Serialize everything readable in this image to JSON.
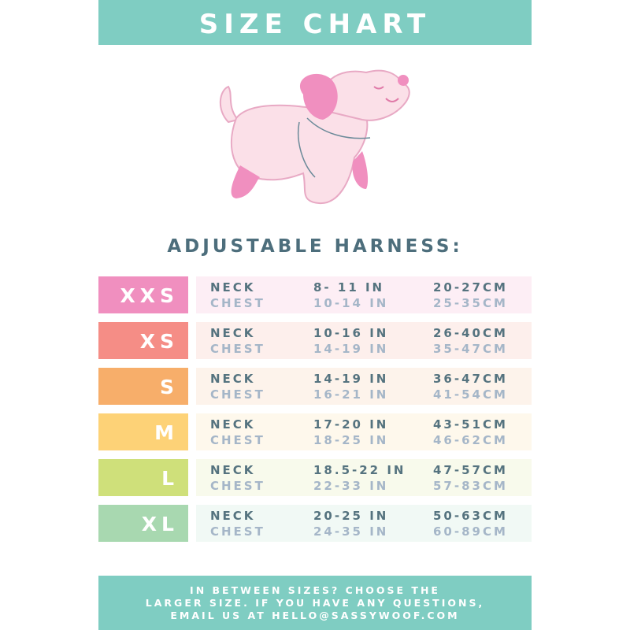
{
  "header": {
    "title": "SIZE CHART"
  },
  "subtitle": "ADJUSTABLE HARNESS:",
  "labels": {
    "neck": "NECK",
    "chest": "CHEST"
  },
  "rows": [
    {
      "size": "XXS",
      "color": "#f08fbf",
      "bg": "#fdeef5",
      "neck_in": "8- 11 IN",
      "neck_cm": "20-27CM",
      "chest_in": "10-14 IN",
      "chest_cm": "25-35CM"
    },
    {
      "size": "XS",
      "color": "#f58d86",
      "bg": "#fdefec",
      "neck_in": "10-16 IN",
      "neck_cm": "26-40CM",
      "chest_in": "14-19 IN",
      "chest_cm": "35-47CM"
    },
    {
      "size": "S",
      "color": "#f7ae6a",
      "bg": "#fdf3eb",
      "neck_in": "14-19 IN",
      "neck_cm": "36-47CM",
      "chest_in": "16-21 IN",
      "chest_cm": "41-54CM"
    },
    {
      "size": "M",
      "color": "#fdd277",
      "bg": "#fef8ec",
      "neck_in": "17-20 IN",
      "neck_cm": "43-51CM",
      "chest_in": "18-25 IN",
      "chest_cm": "46-62CM"
    },
    {
      "size": "L",
      "color": "#cfe07a",
      "bg": "#f8faec",
      "neck_in": "18.5-22 IN",
      "neck_cm": "47-57CM",
      "chest_in": "22-33 IN",
      "chest_cm": "57-83CM"
    },
    {
      "size": "XL",
      "color": "#a8d8b0",
      "bg": "#f1f9f5",
      "neck_in": "20-25 IN",
      "neck_cm": "50-63CM",
      "chest_in": "24-35 IN",
      "chest_cm": "60-89CM"
    }
  ],
  "footer": {
    "lines": [
      "IN BETWEEN SIZES? CHOOSE THE",
      "LARGER SIZE. IF YOU HAVE ANY QUESTIONS,",
      "EMAIL US AT HELLO@SASSYWOOF.COM"
    ]
  },
  "colors": {
    "teal": "#7fcdc2",
    "dog_body": "#fbe0e8",
    "dog_ears": "#f08fbf",
    "text_dark": "#4d6e7c"
  }
}
